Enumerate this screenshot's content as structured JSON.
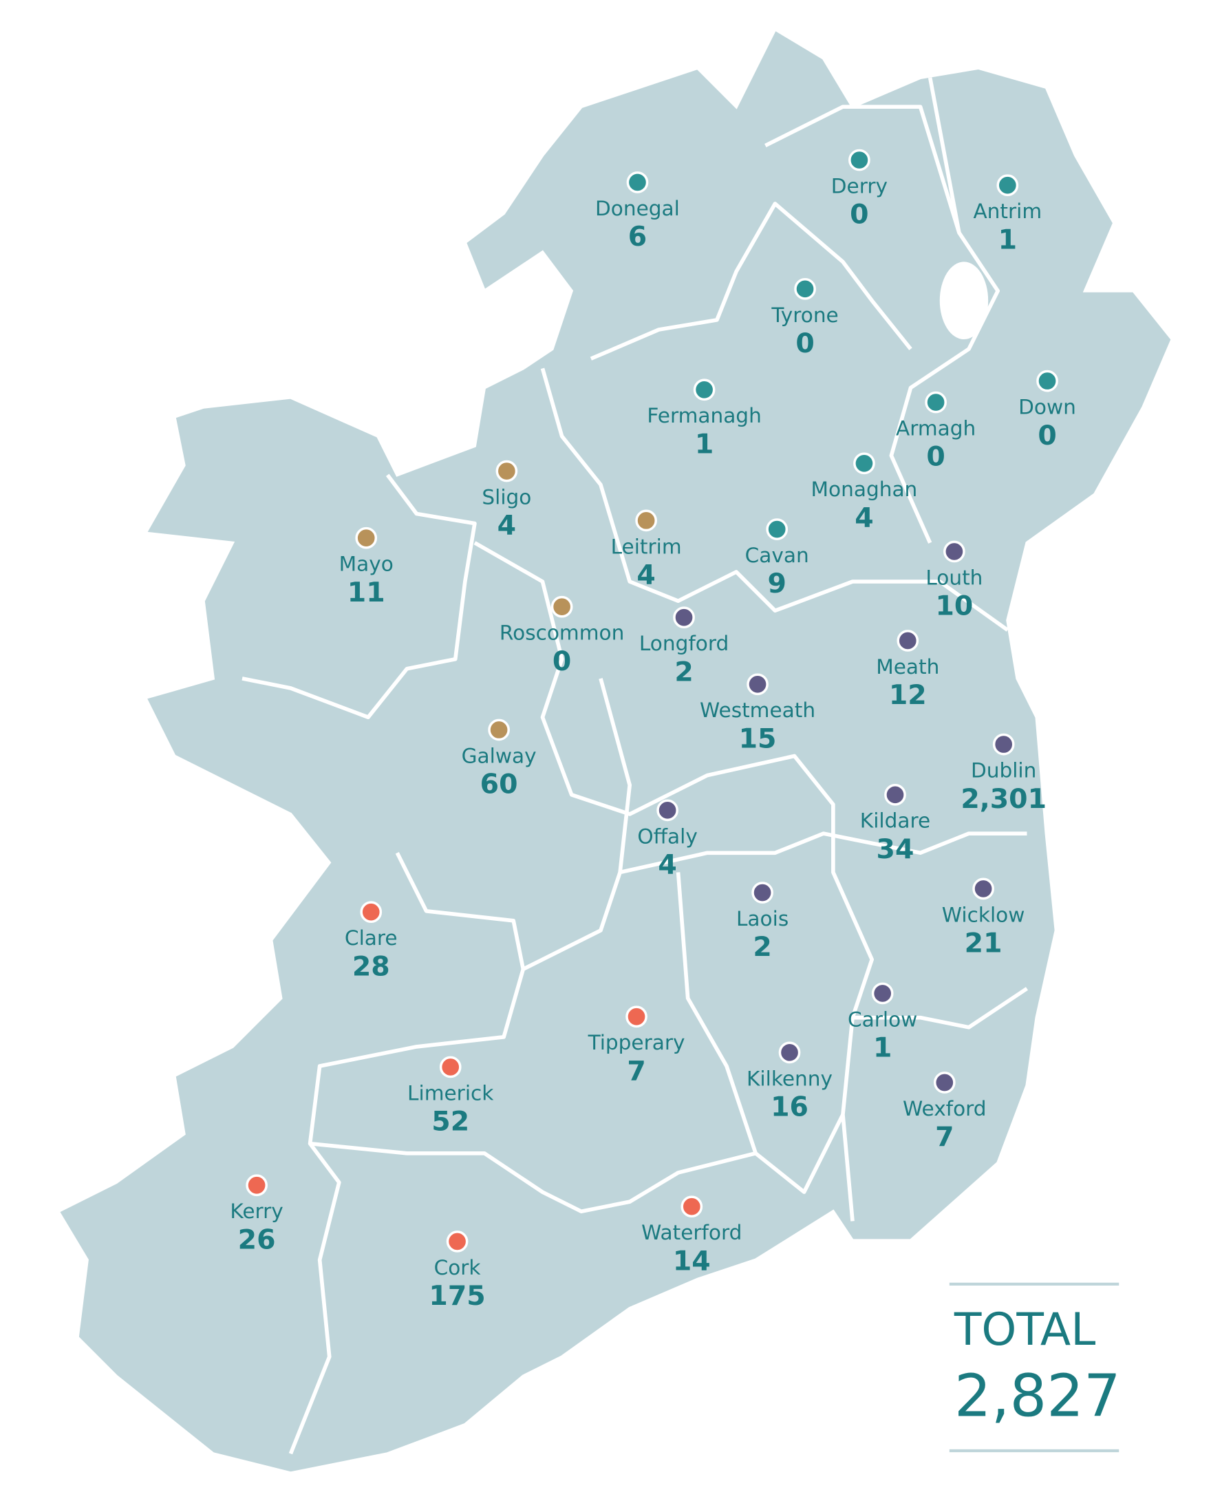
{
  "map": {
    "groups": [
      {
        "color": "#2e9394"
      },
      {
        "color": "#b8925a"
      },
      {
        "color": "#5f5a85"
      },
      {
        "color": "#ee6852"
      }
    ],
    "regions": [
      {
        "name": "Donegal",
        "count": 6,
        "group": 0
      },
      {
        "name": "Derry",
        "count": 0,
        "group": 0
      },
      {
        "name": "Antrim",
        "count": 1,
        "group": 0
      },
      {
        "name": "Tyrone",
        "count": 0,
        "group": 0
      },
      {
        "name": "Fermanagh",
        "count": 1,
        "group": 0
      },
      {
        "name": "Down",
        "count": 0,
        "group": 0
      },
      {
        "name": "Armagh",
        "count": 0,
        "group": 0
      },
      {
        "name": "Monaghan",
        "count": 4,
        "group": 0
      },
      {
        "name": "Sligo",
        "count": 4,
        "group": 1
      },
      {
        "name": "Leitrim",
        "count": 4,
        "group": 1
      },
      {
        "name": "Mayo",
        "count": 11,
        "group": 1
      },
      {
        "name": "Cavan",
        "count": 9,
        "group": 0
      },
      {
        "name": "Louth",
        "count": 10,
        "group": 2
      },
      {
        "name": "Roscommon",
        "count": 0,
        "group": 1
      },
      {
        "name": "Longford",
        "count": 2,
        "group": 2
      },
      {
        "name": "Meath",
        "count": 12,
        "group": 2
      },
      {
        "name": "Westmeath",
        "count": 15,
        "group": 2
      },
      {
        "name": "Galway",
        "count": 60,
        "group": 1
      },
      {
        "name": "Dublin",
        "count": 2301,
        "count_label": "2,301",
        "group": 2
      },
      {
        "name": "Offaly",
        "count": 4,
        "group": 2
      },
      {
        "name": "Kildare",
        "count": 34,
        "group": 2
      },
      {
        "name": "Wicklow",
        "count": 21,
        "group": 2
      },
      {
        "name": "Clare",
        "count": 28,
        "group": 3
      },
      {
        "name": "Laois",
        "count": 2,
        "group": 2
      },
      {
        "name": "Carlow",
        "count": 1,
        "group": 2
      },
      {
        "name": "Tipperary",
        "count": 7,
        "group": 3
      },
      {
        "name": "Limerick",
        "count": 52,
        "group": 3
      },
      {
        "name": "Kilkenny",
        "count": 16,
        "group": 2
      },
      {
        "name": "Wexford",
        "count": 7,
        "group": 2
      },
      {
        "name": "Kerry",
        "count": 26,
        "group": 3
      },
      {
        "name": "Waterford",
        "count": 14,
        "group": 3
      },
      {
        "name": "Cork",
        "count": 175,
        "group": 3
      }
    ],
    "total": {
      "title": "TOTAL",
      "value": 2827,
      "label": "2,827"
    }
  }
}
